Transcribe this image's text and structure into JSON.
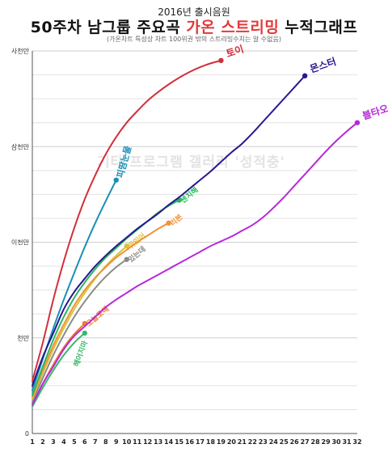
{
  "header": {
    "year_label": "2016년 출시음원",
    "title_part1": "50주차 남그룹 주요곡 ",
    "title_highlight": "가온 스트리밍",
    "title_part2": " 누적그래프",
    "subtitle": "(가온차트 특성상 차트 100위권 밖의 스트리밍수치는 알 수없음)",
    "watermark": "기타 프로그램 갤러리 '성적충'"
  },
  "colors": {
    "토이": "#d32f3a",
    "몬스터": "#2a168f",
    "블타오르네": "#b52ad8",
    "피땀눈물": "#1a8fb6",
    "센치해": "#25b85c",
    "리본": "#f0923a",
    "뭐있어": "#d9c23a",
    "있는데": "#8a8a8a",
    "오늘모해": "#f07a2a",
    "헤어지마": "#3ab86a"
  },
  "chart_data": {
    "type": "line",
    "x_ticks": [
      1,
      2,
      3,
      4,
      5,
      6,
      7,
      8,
      9,
      10,
      11,
      12,
      13,
      14,
      15,
      16,
      17,
      18,
      19,
      20,
      21,
      22,
      23,
      24,
      25,
      26,
      27,
      28,
      29,
      30,
      31,
      32
    ],
    "y_ticks": [
      {
        "value": 0,
        "label": "0"
      },
      {
        "value": 1,
        "label": "천만"
      },
      {
        "value": 2,
        "label": "이천만"
      },
      {
        "value": 3,
        "label": "삼천만"
      },
      {
        "value": 4,
        "label": "사천만"
      }
    ],
    "ylim": [
      0,
      4
    ],
    "xlim": [
      1,
      32
    ],
    "series": [
      {
        "name": "토이",
        "color": "#d32f3a",
        "label_style": "end-right",
        "x": [
          1,
          2,
          3,
          4,
          5,
          6,
          7,
          8,
          9,
          10,
          11,
          12,
          13,
          14,
          15,
          16,
          17,
          18,
          19
        ],
        "y": [
          0.55,
          0.95,
          1.4,
          1.8,
          2.15,
          2.45,
          2.7,
          2.92,
          3.1,
          3.25,
          3.37,
          3.48,
          3.57,
          3.65,
          3.72,
          3.78,
          3.83,
          3.87,
          3.9
        ]
      },
      {
        "name": "몬스터",
        "color": "#2a168f",
        "label_style": "end-right",
        "x": [
          1,
          2,
          3,
          4,
          5,
          6,
          7,
          8,
          9,
          10,
          11,
          12,
          13,
          14,
          15,
          16,
          17,
          18,
          19,
          20,
          21,
          22,
          23,
          24,
          25,
          26,
          27
        ],
        "y": [
          0.5,
          0.8,
          1.05,
          1.3,
          1.48,
          1.62,
          1.75,
          1.86,
          1.96,
          2.05,
          2.14,
          2.22,
          2.3,
          2.39,
          2.47,
          2.56,
          2.65,
          2.74,
          2.84,
          2.94,
          3.03,
          3.14,
          3.26,
          3.38,
          3.5,
          3.62,
          3.74
        ]
      },
      {
        "name": "블타오르네",
        "color": "#b52ad8",
        "label_style": "end-right",
        "x": [
          1,
          2,
          3,
          4,
          5,
          6,
          7,
          8,
          9,
          10,
          11,
          12,
          13,
          14,
          15,
          16,
          17,
          18,
          19,
          20,
          21,
          22,
          23,
          24,
          25,
          26,
          27,
          28,
          29,
          30,
          31,
          32
        ],
        "y": [
          0.3,
          0.52,
          0.7,
          0.88,
          1.02,
          1.12,
          1.22,
          1.32,
          1.4,
          1.47,
          1.54,
          1.6,
          1.66,
          1.72,
          1.78,
          1.84,
          1.9,
          1.96,
          2.01,
          2.06,
          2.12,
          2.18,
          2.26,
          2.36,
          2.47,
          2.59,
          2.71,
          2.83,
          2.95,
          3.06,
          3.16,
          3.25
        ]
      },
      {
        "name": "피땀눈물",
        "color": "#1a8fb6",
        "label_style": "end-vertical",
        "x": [
          1,
          2,
          3,
          4,
          5,
          6,
          7,
          8,
          9
        ],
        "y": [
          0.45,
          0.78,
          1.1,
          1.4,
          1.68,
          1.95,
          2.2,
          2.43,
          2.65
        ]
      },
      {
        "name": "센치해",
        "color": "#25b85c",
        "label_style": "end-diagonal",
        "x": [
          1,
          2,
          3,
          4,
          5,
          6,
          7,
          8,
          9,
          10,
          11,
          12,
          13,
          14,
          15
        ],
        "y": [
          0.4,
          0.7,
          0.98,
          1.22,
          1.42,
          1.58,
          1.72,
          1.84,
          1.94,
          2.04,
          2.13,
          2.22,
          2.31,
          2.38,
          2.44
        ]
      },
      {
        "name": "리본",
        "color": "#f0923a",
        "label_style": "end-diagonal",
        "x": [
          1,
          2,
          3,
          4,
          5,
          6,
          7,
          8,
          9,
          10,
          11,
          12,
          13,
          14
        ],
        "y": [
          0.38,
          0.66,
          0.92,
          1.14,
          1.34,
          1.5,
          1.63,
          1.74,
          1.84,
          1.92,
          2.0,
          2.07,
          2.14,
          2.2
        ]
      },
      {
        "name": "뭐있어",
        "color": "#d9c23a",
        "label_style": "end-diagonal",
        "x": [
          1,
          2,
          3,
          4,
          5,
          6,
          7,
          8,
          9,
          10
        ],
        "y": [
          0.36,
          0.63,
          0.88,
          1.1,
          1.3,
          1.47,
          1.62,
          1.75,
          1.86,
          1.96
        ]
      },
      {
        "name": "있는데",
        "color": "#8a8a8a",
        "label_style": "end-diagonal",
        "x": [
          1,
          2,
          3,
          4,
          5,
          6,
          7,
          8,
          9,
          10
        ],
        "y": [
          0.33,
          0.58,
          0.82,
          1.03,
          1.22,
          1.38,
          1.52,
          1.64,
          1.74,
          1.82
        ]
      },
      {
        "name": "오늘모해",
        "color": "#f07a2a",
        "label_style": "end-diagonal",
        "x": [
          1,
          2,
          3,
          4,
          5,
          6
        ],
        "y": [
          0.3,
          0.52,
          0.72,
          0.9,
          1.04,
          1.15
        ]
      },
      {
        "name": "헤어지마",
        "color": "#3ab86a",
        "label_style": "end-vertical-below",
        "x": [
          1,
          2,
          3,
          4,
          5,
          6
        ],
        "y": [
          0.28,
          0.48,
          0.66,
          0.82,
          0.95,
          1.05
        ]
      }
    ]
  }
}
